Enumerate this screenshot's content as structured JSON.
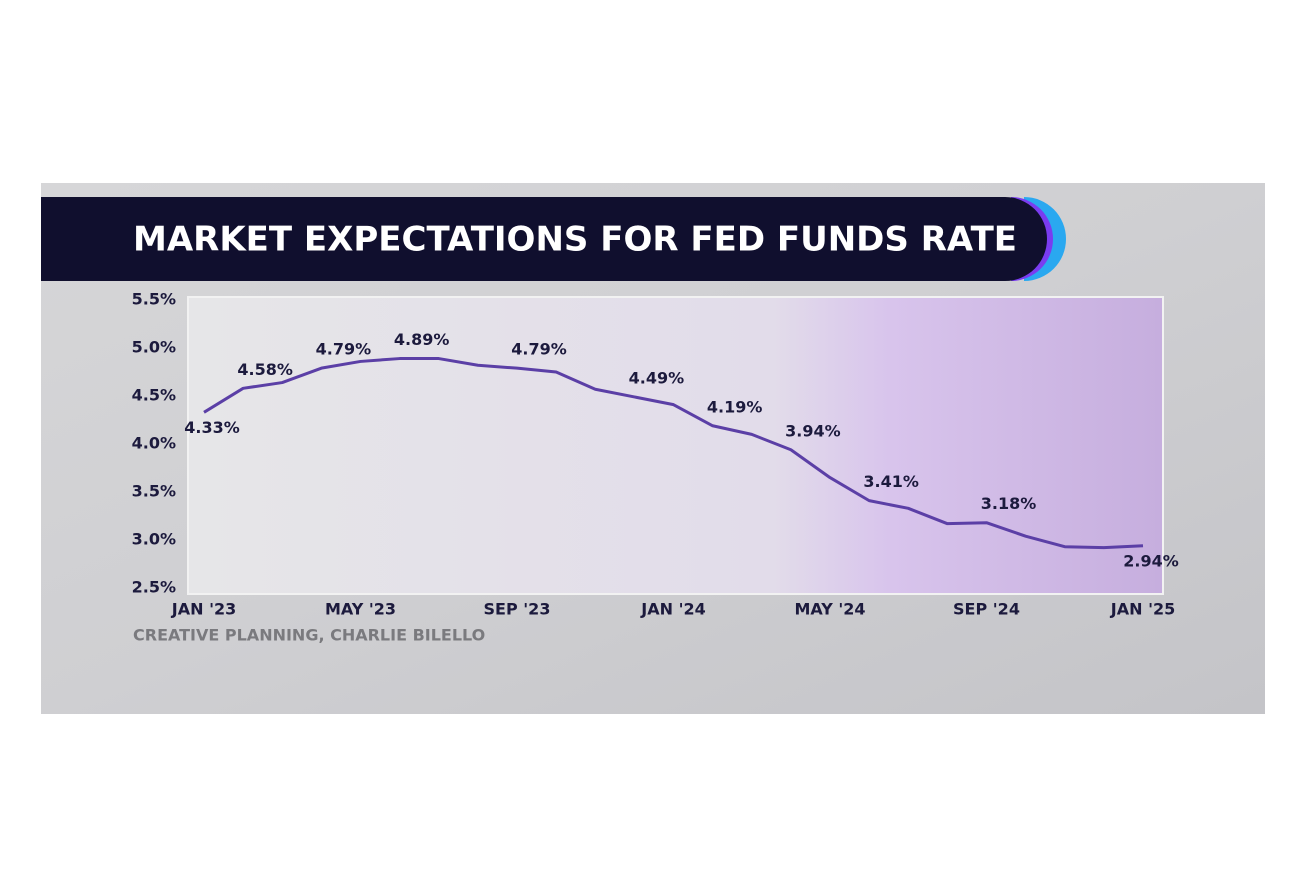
{
  "chart_data": {
    "type": "line",
    "title": "MARKET EXPECTATIONS FOR FED FUNDS RATE",
    "source": "CREATIVE PLANNING, CHARLIE BILELLO",
    "categories": [
      "JAN '23",
      null,
      null,
      null,
      "MAY '23",
      null,
      null,
      null,
      "SEP '23",
      null,
      null,
      null,
      "JAN '24",
      null,
      null,
      null,
      "MAY '24",
      null,
      null,
      null,
      "SEP '24",
      null,
      null,
      null,
      "JAN '25"
    ],
    "series": [
      {
        "name": "Market expectations",
        "color": "#5b3fa6",
        "values": [
          4.33,
          4.58,
          4.64,
          4.79,
          4.86,
          4.89,
          4.89,
          4.82,
          4.79,
          4.75,
          4.57,
          4.49,
          4.41,
          4.19,
          4.1,
          3.94,
          3.65,
          3.41,
          3.33,
          3.17,
          3.18,
          3.04,
          2.93,
          2.92,
          2.94
        ],
        "value_labels": [
          "4.33%",
          "4.58%",
          null,
          "4.79%",
          null,
          "4.89%",
          null,
          null,
          "4.79%",
          null,
          null,
          "4.49%",
          null,
          "4.19%",
          null,
          "3.94%",
          null,
          "3.41%",
          null,
          null,
          "3.18%",
          null,
          null,
          null,
          "2.94%"
        ]
      }
    ],
    "ylim": [
      2.5,
      5.5
    ],
    "yticks": [
      {
        "value": 2.5,
        "label": "2.5%"
      },
      {
        "value": 3.0,
        "label": "3.0%"
      },
      {
        "value": 3.5,
        "label": "3.5%"
      },
      {
        "value": 4.0,
        "label": "4.0%"
      },
      {
        "value": 4.5,
        "label": "4.5%"
      },
      {
        "value": 5.0,
        "label": "5.0%"
      },
      {
        "value": 5.5,
        "label": "5.5%"
      }
    ]
  }
}
